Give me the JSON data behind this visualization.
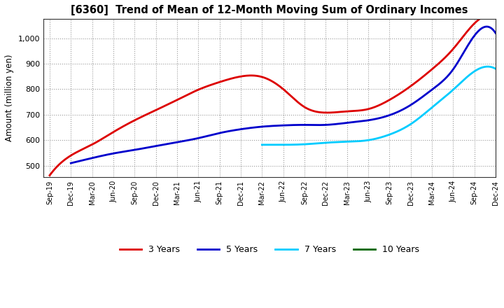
{
  "title": "[6360]  Trend of Mean of 12-Month Moving Sum of Ordinary Incomes",
  "ylabel": "Amount (million yen)",
  "background_color": "#ffffff",
  "plot_bg_color": "#ffffff",
  "grid_color": "#999999",
  "ylim": [
    455,
    1075
  ],
  "yticks": [
    500,
    600,
    700,
    800,
    900,
    1000
  ],
  "ytick_labels": [
    "500",
    "600",
    "700",
    "800",
    "900",
    "1,000"
  ],
  "xtick_labels": [
    "Sep-19",
    "Dec-19",
    "Mar-20",
    "Jun-20",
    "Sep-20",
    "Dec-20",
    "Mar-21",
    "Jun-21",
    "Sep-21",
    "Dec-21",
    "Mar-22",
    "Jun-22",
    "Sep-22",
    "Dec-22",
    "Mar-23",
    "Jun-23",
    "Sep-23",
    "Dec-23",
    "Mar-24",
    "Jun-24",
    "Sep-24",
    "Dec-24"
  ],
  "series": {
    "3yr": {
      "color": "#dd0000",
      "label": "3 Years",
      "x": [
        0,
        1,
        2,
        3,
        4,
        5,
        6,
        7,
        8,
        9,
        10,
        11,
        12,
        13,
        14,
        15,
        16,
        17,
        18,
        19,
        20,
        21
      ],
      "y": [
        462,
        540,
        583,
        632,
        678,
        718,
        758,
        798,
        828,
        850,
        848,
        800,
        730,
        708,
        713,
        722,
        758,
        812,
        878,
        958,
        1058,
        1080
      ]
    },
    "5yr": {
      "color": "#0000cc",
      "label": "5 Years",
      "x": [
        1,
        2,
        3,
        4,
        5,
        6,
        7,
        8,
        9,
        10,
        11,
        12,
        13,
        14,
        15,
        16,
        17,
        18,
        19,
        20,
        21
      ],
      "y": [
        510,
        530,
        548,
        562,
        577,
        592,
        608,
        628,
        643,
        653,
        658,
        660,
        660,
        668,
        678,
        698,
        738,
        798,
        878,
        1010,
        1020
      ]
    },
    "7yr": {
      "color": "#00ccff",
      "label": "7 Years",
      "x": [
        10,
        11,
        12,
        13,
        14,
        15,
        16,
        17,
        18,
        19,
        20,
        21
      ],
      "y": [
        582,
        582,
        584,
        590,
        594,
        600,
        622,
        663,
        728,
        798,
        870,
        880
      ]
    },
    "10yr": {
      "color": "#006600",
      "label": "10 Years",
      "x": [],
      "y": []
    }
  }
}
